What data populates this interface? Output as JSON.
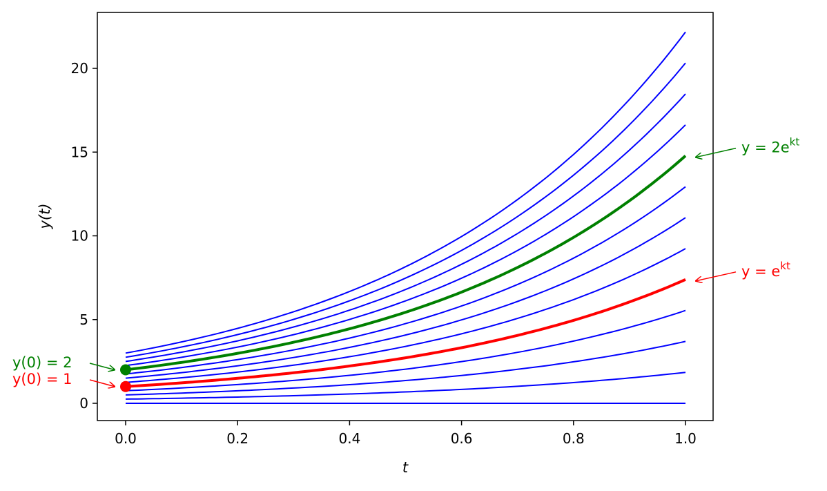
{
  "chart_data": {
    "type": "line",
    "title": "",
    "xlabel": "t",
    "ylabel": "y(t)",
    "xlim": [
      -0.05,
      1.05
    ],
    "ylim": [
      -1.03,
      23.34
    ],
    "grid": false,
    "k": 2,
    "x_ticks": [
      "0.0",
      "0.2",
      "0.4",
      "0.6",
      "0.8",
      "1.0"
    ],
    "x_tick_values": [
      0,
      0.2,
      0.4,
      0.6,
      0.8,
      1.0
    ],
    "y_ticks": [
      "0",
      "5",
      "10",
      "15",
      "20"
    ],
    "y_tick_values": [
      0,
      5,
      10,
      15,
      20
    ],
    "family": {
      "formula": "y = C e^{kt}",
      "C_values": [
        0,
        0.25,
        0.5,
        0.75,
        1,
        1.25,
        1.5,
        1.75,
        2,
        2.25,
        2.5,
        2.75,
        3
      ],
      "color": "#0000ff"
    },
    "highlighted": [
      {
        "C": 1,
        "color": "#ff0000",
        "curve_label": {
          "text": "y = e",
          "sup": "kt"
        },
        "point_label": "y(0) = 1"
      },
      {
        "C": 2,
        "color": "#008000",
        "curve_label": {
          "text": "y = 2e",
          "sup": "kt"
        },
        "point_label": "y(0) = 2"
      }
    ]
  }
}
